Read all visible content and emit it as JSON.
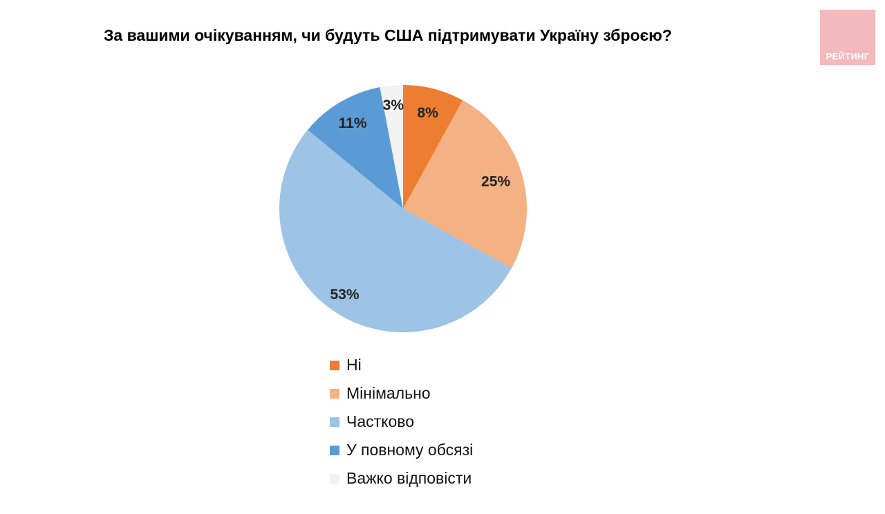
{
  "logo": {
    "text": "РЕЙТИНГ",
    "color": "#f4b9bc"
  },
  "chart_data": {
    "type": "pie",
    "title": "За вашими очікуванням, чи будуть США підтримувати Україну зброєю?",
    "unit": "%",
    "legend_position": "bottom",
    "slices": [
      {
        "label": "Ні",
        "value": 8,
        "display": "8%",
        "color": "#ed7d31"
      },
      {
        "label": "Мінімально",
        "value": 25,
        "display": "25%",
        "color": "#f4b183"
      },
      {
        "label": "Частково",
        "value": 53,
        "display": "53%",
        "color": "#9dc3e6"
      },
      {
        "label": "У повному обсязі",
        "value": 11,
        "display": "11%",
        "color": "#5b9bd5"
      },
      {
        "label": "Важко відповісти",
        "value": 3,
        "display": "3%",
        "color": "#f2f2f2"
      }
    ]
  }
}
